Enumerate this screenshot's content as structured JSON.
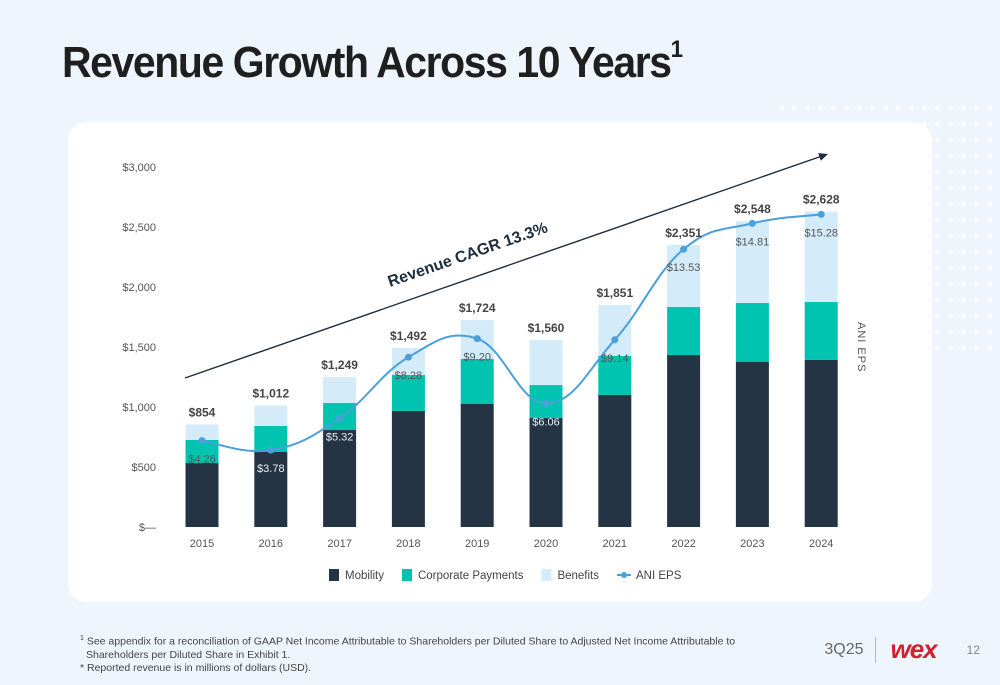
{
  "slide": {
    "title": "Revenue Growth Across 10 Years",
    "title_footnote_marker": "1",
    "footnote_marker": "1",
    "footnote_line1": "See appendix for a reconciliation of GAAP Net Income Attributable to Shareholders per Diluted Share to Adjusted Net Income Attributable to",
    "footnote_line2": "Shareholders per Diluted Share in Exhibit 1.",
    "footnote_line3": "* Reported revenue is in millions of dollars (USD).",
    "quarter": "3Q25",
    "logo_text": "wex",
    "page_number": "12"
  },
  "colors": {
    "mobility": "#243444",
    "corporate_payments": "#00c4b0",
    "benefits": "#d4ecfa",
    "eps_line": "#4a9fdc",
    "cagr_arrow": "#1e2d3d",
    "brand": "#d0212e"
  },
  "chart_data": {
    "type": "bar",
    "stacked": true,
    "title": "Revenue Growth Across 10 Years",
    "xlabel": "",
    "ylabel": "",
    "y2label": "ANI EPS",
    "ylim": [
      0,
      3000
    ],
    "yticks": [
      0,
      500,
      1000,
      1500,
      2000,
      2500,
      3000
    ],
    "ytick_labels": [
      "$—",
      "$500",
      "$1,000",
      "$1,500",
      "$2,000",
      "$2,500",
      "$3,000"
    ],
    "grid": false,
    "legend_position": "bottom-center",
    "categories": [
      "2015",
      "2016",
      "2017",
      "2018",
      "2019",
      "2020",
      "2021",
      "2022",
      "2023",
      "2024"
    ],
    "series": [
      {
        "name": "Mobility",
        "values": [
          533,
          625,
          808,
          967,
          1025,
          908,
          1100,
          1433,
          1375,
          1392
        ]
      },
      {
        "name": "Corporate Payments",
        "values": [
          192,
          217,
          225,
          300,
          375,
          275,
          325,
          400,
          492,
          483
        ]
      },
      {
        "name": "Benefits",
        "values": [
          129,
          170,
          216,
          225,
          324,
          377,
          426,
          518,
          681,
          753
        ]
      }
    ],
    "totals": [
      854,
      1012,
      1249,
      1492,
      1724,
      1560,
      1851,
      2351,
      2548,
      2628
    ],
    "total_labels": [
      "$854",
      "$1,012",
      "$1,249",
      "$1,492",
      "$1,724",
      "$1,560",
      "$1,851",
      "$2,351",
      "$2,548",
      "$2,628"
    ],
    "eps_series": {
      "name": "ANI EPS",
      "type": "line",
      "values": [
        4.26,
        3.78,
        5.32,
        8.28,
        9.2,
        6.06,
        9.14,
        13.53,
        14.81,
        15.28
      ],
      "labels": [
        "$4.26",
        "$3.78",
        "$5.32",
        "$8.28",
        "$9.20",
        "$6.06",
        "$9.14",
        "$13.53",
        "$14.81",
        "$15.28"
      ],
      "plotted_on_revenue_scale": [
        720,
        640,
        905,
        1415,
        1570,
        1030,
        1560,
        2315,
        2530,
        2605
      ]
    },
    "annotation": {
      "text": "Revenue CAGR 13.3%",
      "type": "trend-arrow"
    },
    "legend": [
      {
        "label": "Mobility",
        "kind": "square",
        "key": "mobility"
      },
      {
        "label": "Corporate Payments",
        "kind": "square",
        "key": "corporate_payments"
      },
      {
        "label": "Benefits",
        "kind": "square",
        "key": "benefits"
      },
      {
        "label": "ANI EPS",
        "kind": "line",
        "key": "eps_line"
      }
    ]
  }
}
